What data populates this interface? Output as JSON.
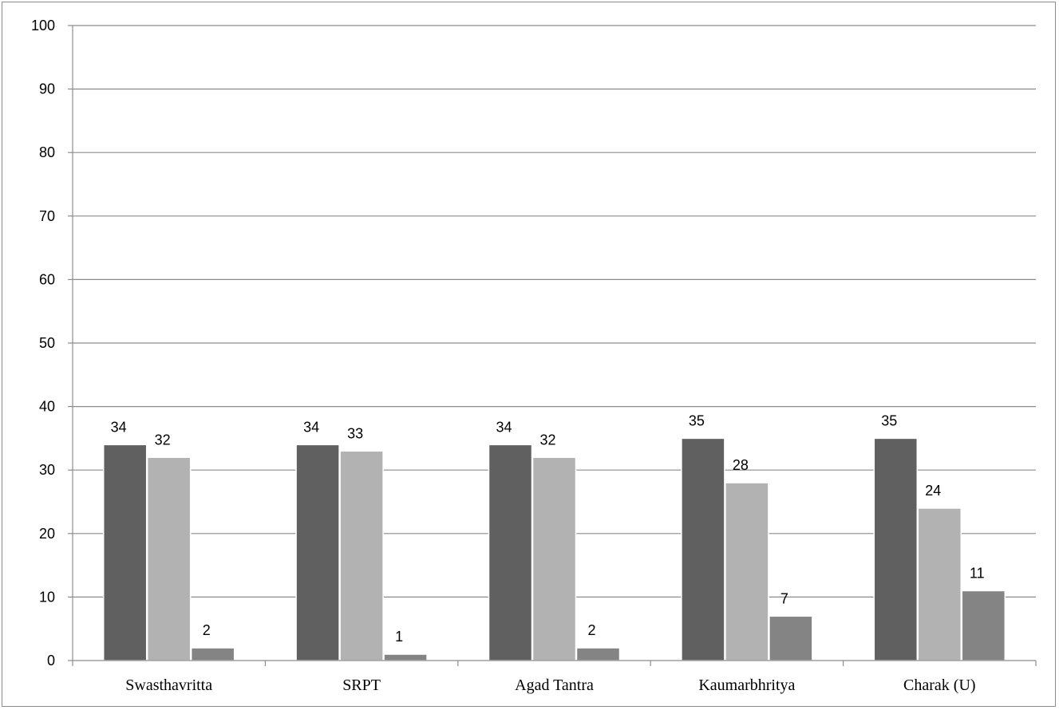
{
  "chart_data": {
    "type": "bar",
    "categories": [
      "Swasthavritta",
      "SRPT",
      "Agad Tantra",
      "Kaumarbhritya",
      "Charak (U)"
    ],
    "series": [
      {
        "values": [
          34,
          34,
          34,
          35,
          35
        ],
        "color": "#606060"
      },
      {
        "values": [
          32,
          33,
          32,
          28,
          24
        ],
        "color": "#b2b2b2"
      },
      {
        "values": [
          2,
          1,
          2,
          7,
          11
        ],
        "color": "#848484"
      }
    ],
    "ylim": [
      0,
      100
    ],
    "yticks": [
      0,
      10,
      20,
      30,
      40,
      50,
      60,
      70,
      80,
      90,
      100
    ],
    "grid": true,
    "data_labels": true,
    "legend": "none"
  }
}
